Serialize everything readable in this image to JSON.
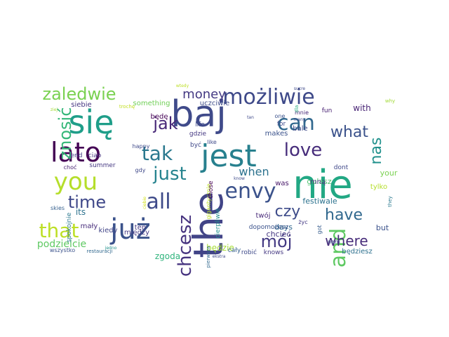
{
  "cloud": {
    "words": [
      {
        "text": "baj",
        "color": "#3f4a8a"
      },
      {
        "text": "the",
        "color": "#414487"
      },
      {
        "text": "nie",
        "color": "#22a884"
      },
      {
        "text": "się",
        "color": "#1f9e89"
      },
      {
        "text": "jest",
        "color": "#27808e"
      },
      {
        "text": "już",
        "color": "#3b528b"
      },
      {
        "text": "lato",
        "color": "#440154"
      },
      {
        "text": "you",
        "color": "#b5de2b"
      },
      {
        "text": "możliwie",
        "color": "#3e4989"
      },
      {
        "text": "can",
        "color": "#31688e"
      },
      {
        "text": "envy",
        "color": "#3b528b"
      },
      {
        "text": "all",
        "color": "#3e4a89"
      },
      {
        "text": "love",
        "color": "#472d7b"
      },
      {
        "text": "tak",
        "color": "#2a788e"
      },
      {
        "text": "and",
        "color": "#5ec962"
      },
      {
        "text": "chcesz",
        "color": "#46337f"
      },
      {
        "text": "zaledwie",
        "color": "#7ad151"
      },
      {
        "text": "that",
        "color": "#bddf26"
      },
      {
        "text": "time",
        "color": "#3f4889"
      },
      {
        "text": "jak",
        "color": "#482878"
      },
      {
        "text": "just",
        "color": "#25838e"
      },
      {
        "text": "znosić",
        "color": "#35b779"
      },
      {
        "text": "what",
        "color": "#3b528b"
      },
      {
        "text": "have",
        "color": "#31688e"
      },
      {
        "text": "nas",
        "color": "#21918c"
      },
      {
        "text": "czy",
        "color": "#3e4c8a"
      },
      {
        "text": "mój",
        "color": "#443a83"
      },
      {
        "text": "where",
        "color": "#472c7a"
      },
      {
        "text": "money",
        "color": "#443983"
      },
      {
        "text": "when",
        "color": "#2c728e"
      },
      {
        "text": "podzielcie",
        "color": "#5ec962"
      },
      {
        "text": "zgoda",
        "color": "#2fb47c"
      },
      {
        "text": "będzie",
        "color": "#a5db36"
      },
      {
        "text": "festiwale",
        "color": "#2c728e"
      },
      {
        "text": "gulasz",
        "color": "#4ac16d"
      },
      {
        "text": "days",
        "color": "#31688e"
      },
      {
        "text": "chcieć",
        "color": "#453781"
      },
      {
        "text": "but",
        "color": "#3b528b"
      },
      {
        "text": "będziesz",
        "color": "#2d708e"
      },
      {
        "text": "spokojnie",
        "color": "#2a788e"
      },
      {
        "text": "its",
        "color": "#2c728e"
      },
      {
        "text": "mały",
        "color": "#472d7b"
      },
      {
        "text": "kiedy",
        "color": "#414487"
      },
      {
        "text": "między",
        "color": "#443983"
      },
      {
        "text": "ten",
        "color": "#453882"
      },
      {
        "text": "cały",
        "color": "#355f8d"
      },
      {
        "text": "robić",
        "color": "#3e4989"
      },
      {
        "text": "wszystko",
        "color": "#3b528b"
      },
      {
        "text": "restauracji",
        "color": "#31688e"
      },
      {
        "text": "siebie",
        "color": "#453581"
      },
      {
        "text": "uczciwie",
        "color": "#3e4c8a"
      },
      {
        "text": "something",
        "color": "#70cf57"
      },
      {
        "text": "with",
        "color": "#482475"
      },
      {
        "text": "makes",
        "color": "#3b528b"
      },
      {
        "text": "bale",
        "color": "#3e4a89"
      },
      {
        "text": "fun",
        "color": "#482173"
      },
      {
        "text": "dont",
        "color": "#3f4889"
      },
      {
        "text": "your",
        "color": "#7ad151"
      },
      {
        "text": "tylko",
        "color": "#b5de2b"
      },
      {
        "text": "was",
        "color": "#48186a"
      },
      {
        "text": "mną",
        "color": "#46327e"
      },
      {
        "text": "twój",
        "color": "#482979"
      },
      {
        "text": "dopomożesz",
        "color": "#3b528b"
      },
      {
        "text": "życ",
        "color": "#443983"
      },
      {
        "text": "got",
        "color": "#365c8d"
      },
      {
        "text": "nam",
        "color": "#3b528b"
      },
      {
        "text": "knows",
        "color": "#453882"
      },
      {
        "text": "cierpliwie",
        "color": "#21918c"
      },
      {
        "text": "gigantycznie",
        "color": "#bddf26"
      },
      {
        "text": "those",
        "color": "#440154"
      },
      {
        "text": "life",
        "color": "#3e4989"
      },
      {
        "text": "like",
        "color": "#3e4989"
      },
      {
        "text": "być",
        "color": "#3f4889"
      },
      {
        "text": "gdzie",
        "color": "#453882"
      },
      {
        "text": "będę",
        "color": "#440154"
      },
      {
        "text": "end",
        "color": "#443a83"
      },
      {
        "text": "ciao",
        "color": "#46327e"
      },
      {
        "text": "summer",
        "color": "#453882"
      },
      {
        "text": "choć",
        "color": "#482173"
      },
      {
        "text": "happy",
        "color": "#3e4989"
      },
      {
        "text": "gdy",
        "color": "#3f4889"
      },
      {
        "text": "skies",
        "color": "#355f8d"
      },
      {
        "text": "jedno",
        "color": "#21918c"
      },
      {
        "text": "pierwsza",
        "color": "#31688e"
      },
      {
        "text": "ciebie",
        "color": "#d2e21b"
      },
      {
        "text": "know",
        "color": "#3e4c8a"
      },
      {
        "text": "trochę",
        "color": "#c2df23"
      },
      {
        "text": "wtedy",
        "color": "#bddf26"
      },
      {
        "text": "mnie",
        "color": "#482878"
      },
      {
        "text": "dla",
        "color": "#29af7f"
      },
      {
        "text": "many",
        "color": "#3e4989"
      },
      {
        "text": "one",
        "color": "#3b528b"
      },
      {
        "text": "for",
        "color": "#3e4989"
      },
      {
        "text": "tan",
        "color": "#3e4989"
      },
      {
        "text": "why",
        "color": "#a2da37"
      },
      {
        "text": "sucre",
        "color": "#3e4989"
      },
      {
        "text": "they",
        "color": "#2a788e"
      },
      {
        "text": "ziej",
        "color": "#a5db36"
      },
      {
        "text": "ekstra",
        "color": "#3e4989"
      }
    ]
  }
}
